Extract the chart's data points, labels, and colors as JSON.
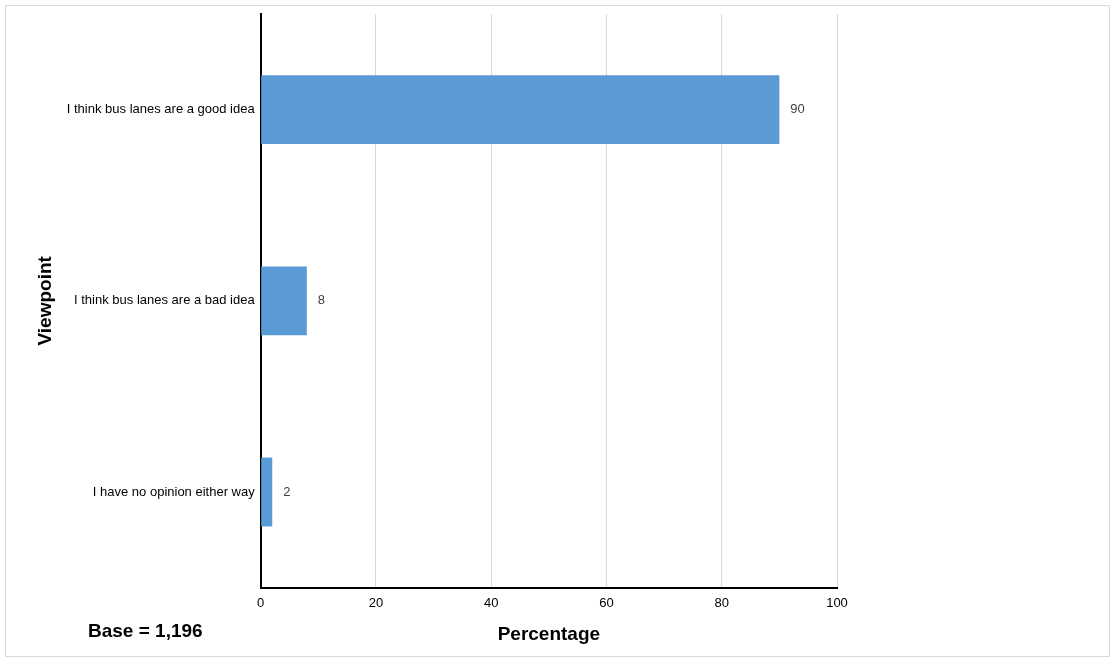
{
  "chart_data": {
    "type": "bar",
    "orientation": "horizontal",
    "xlabel": "Percentage",
    "ylabel": "Viewpoint",
    "categories": [
      "I think bus lanes are a good idea",
      "I think bus lanes are a bad idea",
      "I have no opinion either way"
    ],
    "values": [
      90,
      8,
      2
    ],
    "color": "#5b9bd5",
    "xlim": [
      0,
      100
    ],
    "xticks": [
      0,
      20,
      40,
      60,
      80,
      100
    ],
    "grid": "x",
    "data_labels": true,
    "legend": false,
    "annotations": [
      "Base = 1,196"
    ]
  }
}
